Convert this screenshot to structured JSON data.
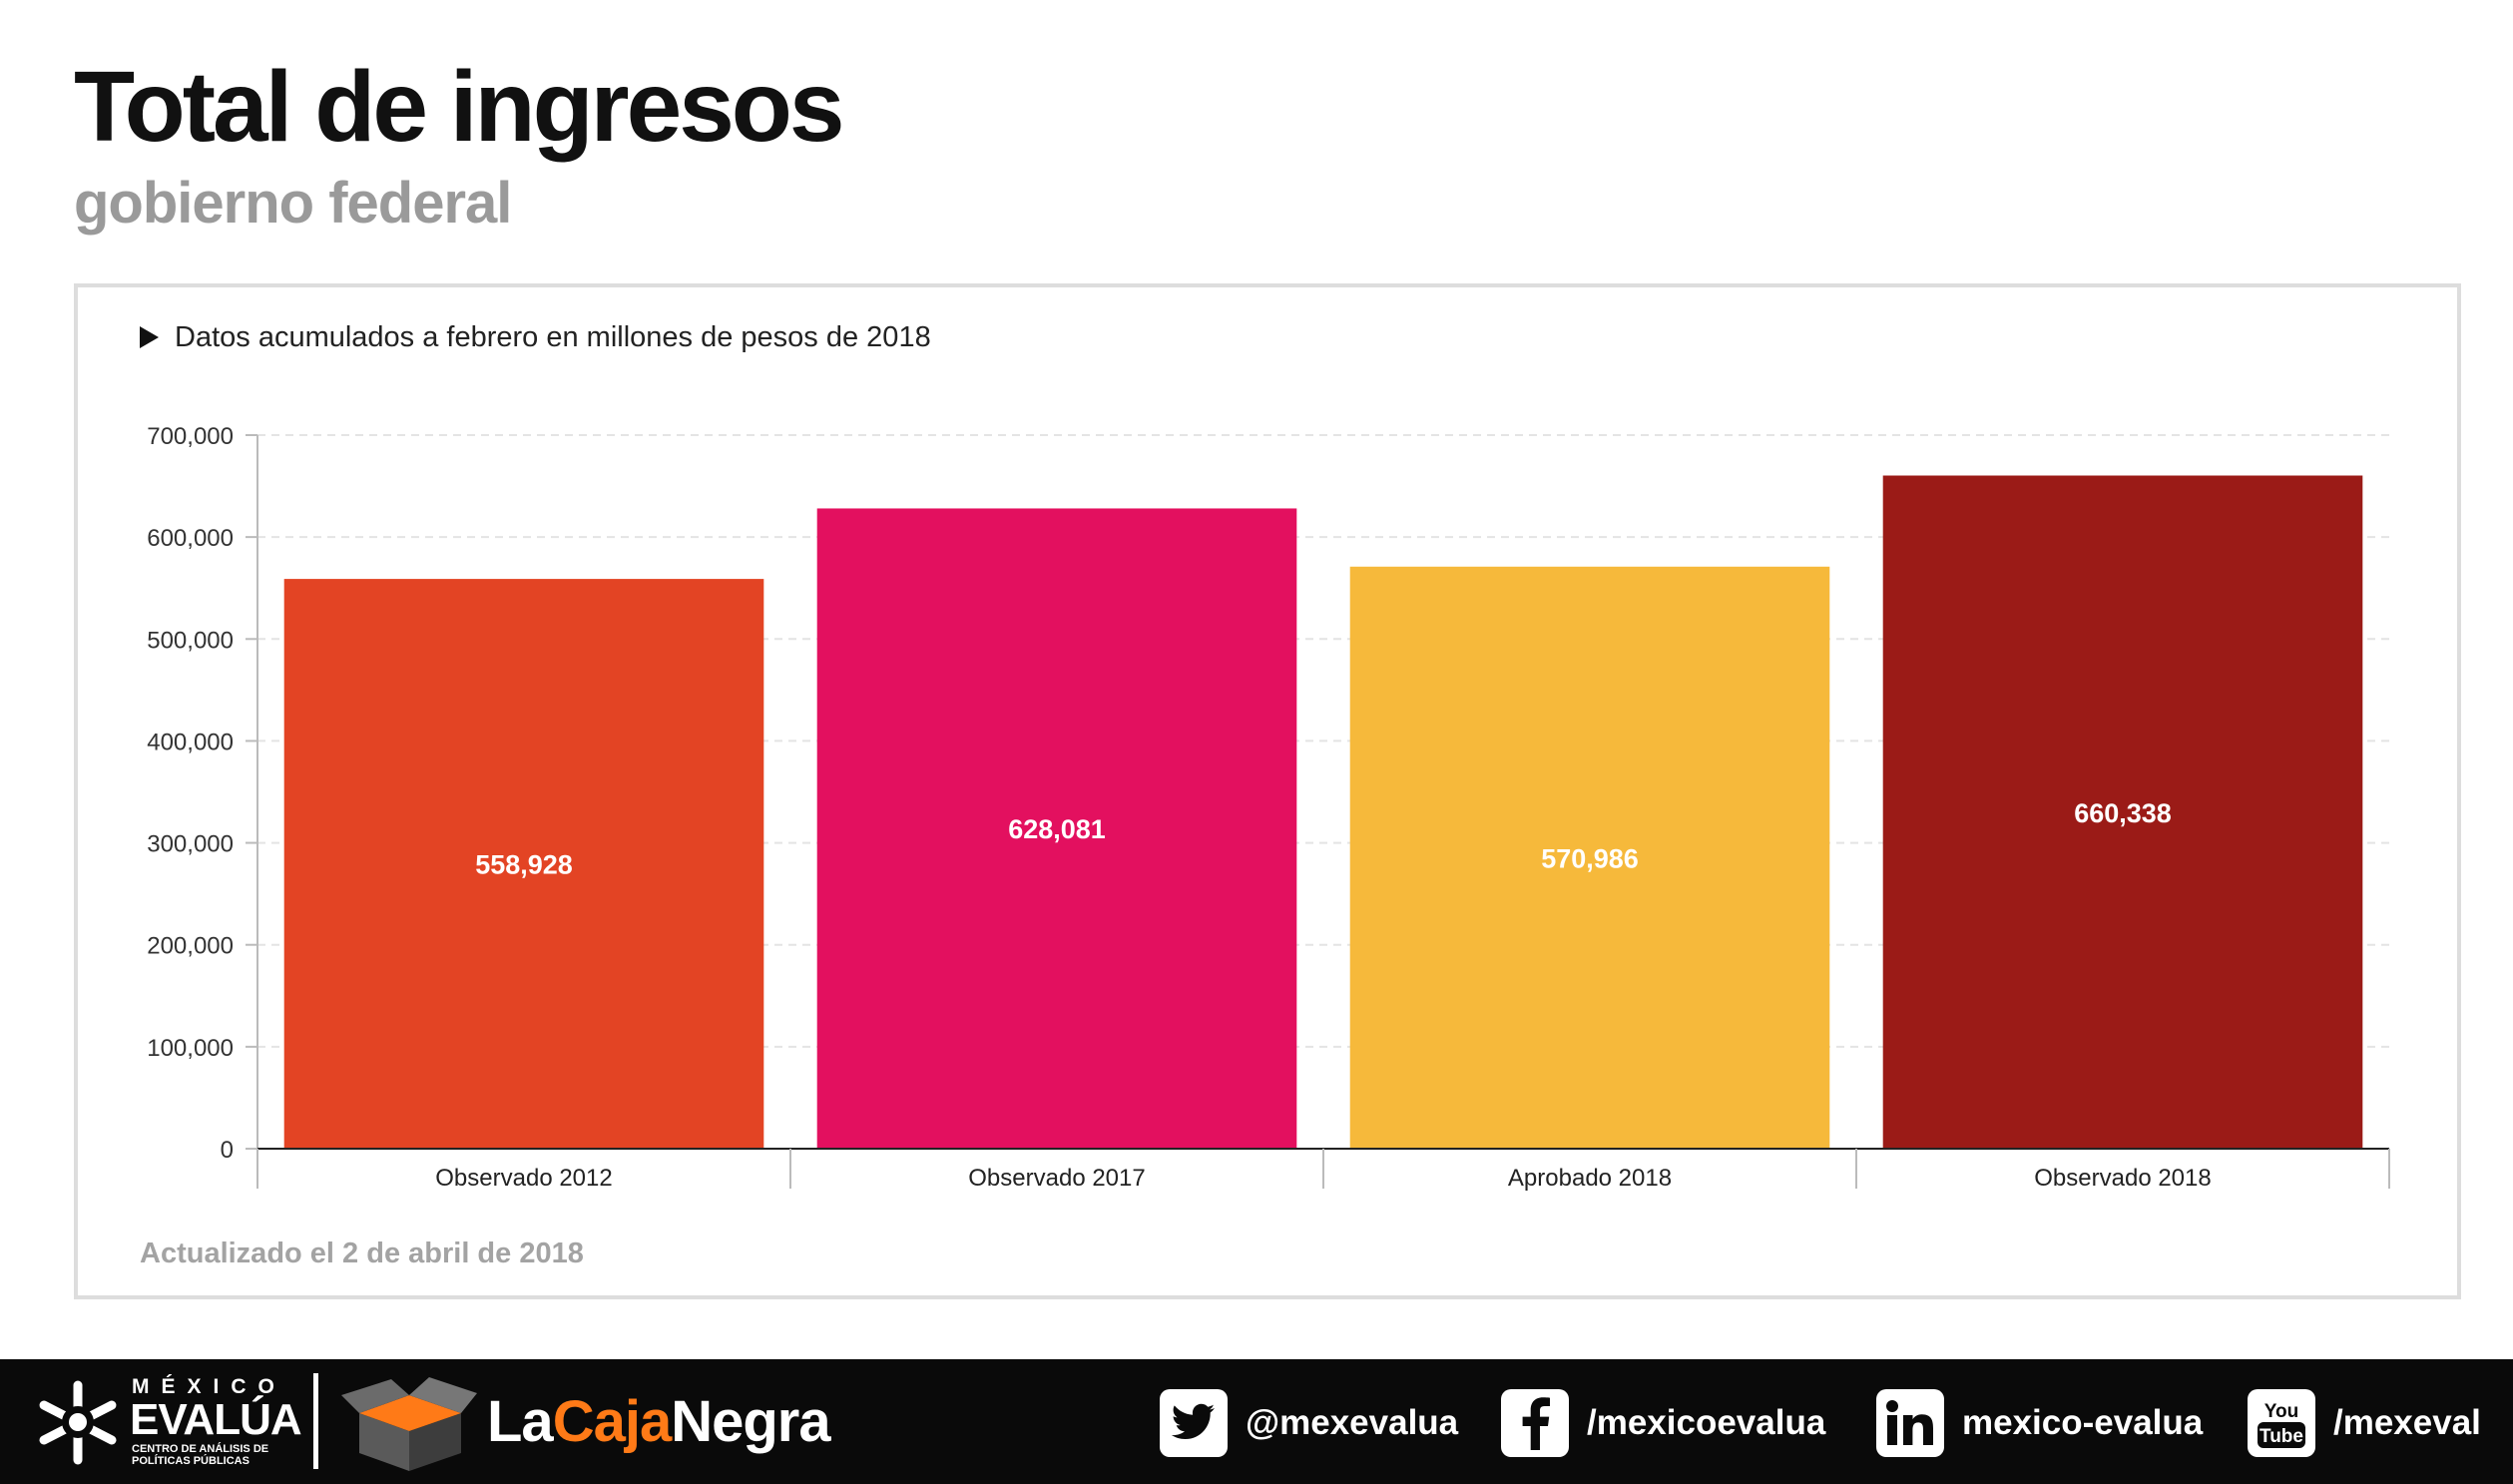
{
  "header": {
    "title": "Total de ingresos",
    "subtitle": "gobierno federal"
  },
  "note": "Datos acumulados a febrero en millones de pesos de 2018",
  "updated": "Actualizado el 2 de abril de 2018",
  "chart_data": {
    "type": "bar",
    "title": "",
    "xlabel": "",
    "ylabel": "",
    "categories": [
      "Observado 2012",
      "Observado 2017",
      "Aprobado 2018",
      "Observado 2018"
    ],
    "values": [
      558928,
      628081,
      570986,
      660338
    ],
    "value_labels": [
      "558,928",
      "628,081",
      "570,986",
      "660,338"
    ],
    "colors": [
      "#e34424",
      "#e3105f",
      "#f6b93b",
      "#9b1b17"
    ],
    "ylim": [
      0,
      700000
    ],
    "yticks": [
      0,
      100000,
      200000,
      300000,
      400000,
      500000,
      600000,
      700000
    ],
    "ytick_labels": [
      "0",
      "100,000",
      "200,000",
      "300,000",
      "400,000",
      "500,000",
      "600,000",
      "700,000"
    ],
    "grid": true,
    "legend": "none"
  },
  "footer": {
    "org_small": "MÉXICO",
    "org_name": "EVALÚA",
    "org_tagline": "CENTRO DE ANÁLISIS DE POLÍTICAS PÚBLICAS",
    "brand_part1": "La",
    "brand_part2": "Caja",
    "brand_part3": "Negra",
    "brand_accent": "#ff7a17",
    "social": [
      {
        "icon": "twitter-icon",
        "text": "@mexevalua"
      },
      {
        "icon": "facebook-icon",
        "text": "/mexicoevalua"
      },
      {
        "icon": "linkedin-icon",
        "text": "mexico-evalua"
      },
      {
        "icon": "youtube-icon",
        "text": "/mexeval"
      }
    ]
  }
}
